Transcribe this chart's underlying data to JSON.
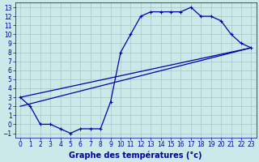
{
  "title": "Graphe des températures (°c)",
  "background_color": "#cce8e8",
  "grid_color": "#aacccc",
  "line_color": "#0000aa",
  "xlim": [
    -0.5,
    23.5
  ],
  "ylim": [
    -1.5,
    13.5
  ],
  "xticks": [
    0,
    1,
    2,
    3,
    4,
    5,
    6,
    7,
    8,
    9,
    10,
    11,
    12,
    13,
    14,
    15,
    16,
    17,
    18,
    19,
    20,
    21,
    22,
    23
  ],
  "yticks": [
    -1,
    0,
    1,
    2,
    3,
    4,
    5,
    6,
    7,
    8,
    9,
    10,
    11,
    12,
    13
  ],
  "line1_x": [
    0,
    1,
    2,
    3,
    4,
    5,
    6,
    7,
    8,
    9,
    10,
    11,
    12,
    13,
    14,
    15,
    16,
    17,
    18,
    19,
    20,
    21,
    22,
    23
  ],
  "line1_y": [
    3,
    2,
    0,
    0,
    -0.5,
    -1,
    -0.5,
    -0.5,
    -0.5,
    2.5,
    8,
    10,
    12,
    12.5,
    12.5,
    12.5,
    12.5,
    13,
    12,
    12,
    11.5,
    10,
    9,
    8.5
  ],
  "line2_x": [
    0,
    23
  ],
  "line2_y": [
    3,
    8.5
  ],
  "line3_x": [
    0,
    23
  ],
  "line3_y": [
    2,
    8.5
  ],
  "xlabel_fontsize": 7,
  "tick_fontsize": 5.5
}
